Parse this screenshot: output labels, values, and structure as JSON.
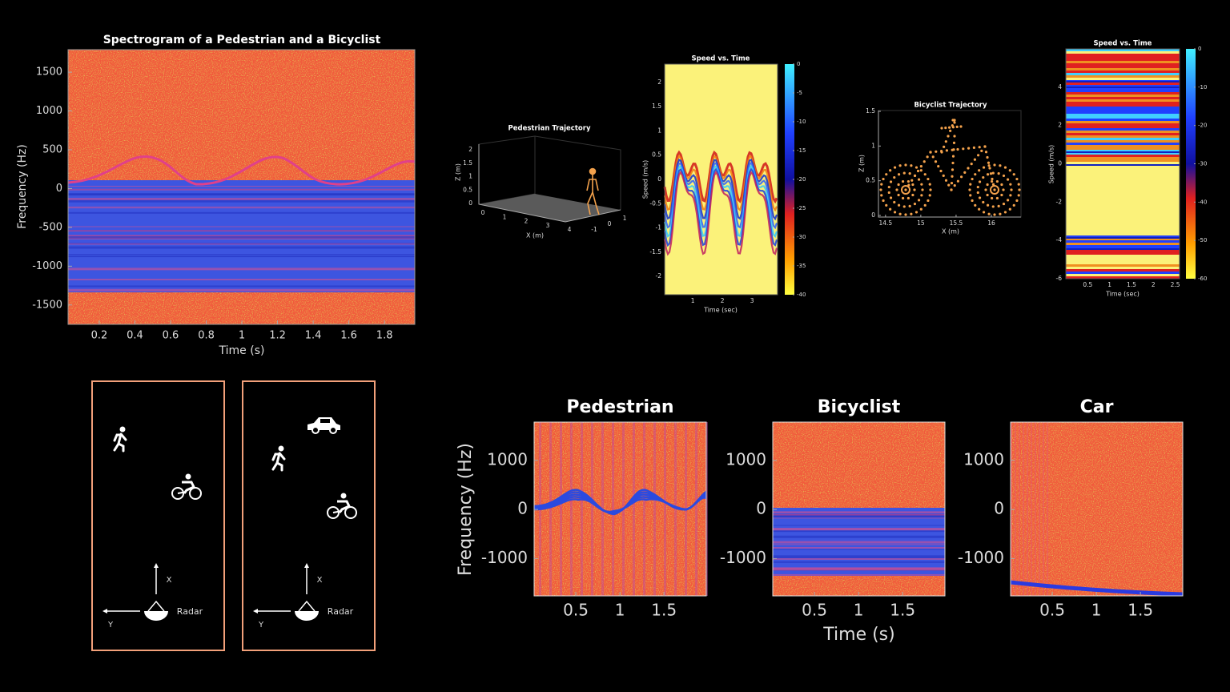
{
  "main_spectrogram": {
    "title": "Spectrogram of a Pedestrian and a Bicyclist",
    "xlabel": "Time (s)",
    "ylabel": "Frequency (Hz)",
    "xlim": [
      0.025,
      1.97
    ],
    "ylim": [
      -1750,
      1790
    ],
    "xticks": [
      0.2,
      0.4,
      0.6,
      0.8,
      1,
      1.2,
      1.4,
      1.6,
      1.8
    ],
    "yticks": [
      1500,
      1000,
      500,
      0,
      -500,
      -1000,
      -1500
    ]
  },
  "pedestrian_trajectory": {
    "title": "Pedestrian Trajectory",
    "xlabel": "X (m)",
    "zlabel": "Z (m)",
    "xlim": [
      0,
      4
    ],
    "ylim": [
      -1,
      1
    ],
    "zlim": [
      0,
      2
    ],
    "xticks": [
      0,
      1,
      2,
      3,
      4
    ],
    "yticks": [
      -1,
      0,
      1
    ],
    "zticks": [
      0,
      0.5,
      1,
      1.5,
      2
    ]
  },
  "pedestrian_speed": {
    "title": "Speed vs. Time",
    "xlabel": "Time (sec)",
    "ylabel": "Speed (m/s)",
    "xlim": [
      0.05,
      3.86
    ],
    "ylim": [
      -2.38,
      2.38
    ],
    "xticks": [
      1,
      2,
      3
    ],
    "yticks": [
      2,
      1.5,
      1,
      0.5,
      0,
      -0.5,
      -1,
      -1.5,
      -2
    ],
    "clim": [
      -40,
      0
    ],
    "cticks": [
      0,
      -5,
      -10,
      -15,
      -20,
      -25,
      -30,
      -35,
      -40
    ]
  },
  "bicyclist_trajectory": {
    "title": "Bicyclist Trajectory",
    "xlabel": "X (m)",
    "ylabel": "Z (m)",
    "xlim": [
      14.4,
      16.42
    ],
    "ylim": [
      0,
      1.5
    ],
    "xticks": [
      14.5,
      15,
      15.5,
      16
    ],
    "yticks": [
      0,
      0.5,
      1,
      1.5
    ]
  },
  "bicyclist_speed": {
    "title": "Speed vs. Time",
    "xlabel": "Time (sec)",
    "ylabel": "Speed (m/s)",
    "xlim": [
      0,
      2.6
    ],
    "ylim": [
      -6,
      6
    ],
    "xticks": [
      0.5,
      1,
      1.5,
      2,
      2.5
    ],
    "yticks": [
      4,
      2,
      0,
      -2,
      -4,
      -6
    ],
    "clim": [
      -60,
      0
    ],
    "cticks": [
      0,
      -10,
      -20,
      -30,
      -40,
      -50,
      -60
    ]
  },
  "scene_labels": {
    "x_axis": "X",
    "y_axis": "Y",
    "radar": "Radar"
  },
  "class_spectrograms": {
    "xlabel": "Time (s)",
    "ylabel": "Frequency (Hz)",
    "xlim": [
      0.027,
      1.98
    ],
    "ylim": [
      -1760,
      1780
    ],
    "xticks": [
      0.5,
      1,
      1.5
    ],
    "yticks": [
      1000,
      0,
      -1000
    ],
    "titles": [
      "Pedestrian",
      "Bicyclist",
      "Car"
    ]
  }
}
